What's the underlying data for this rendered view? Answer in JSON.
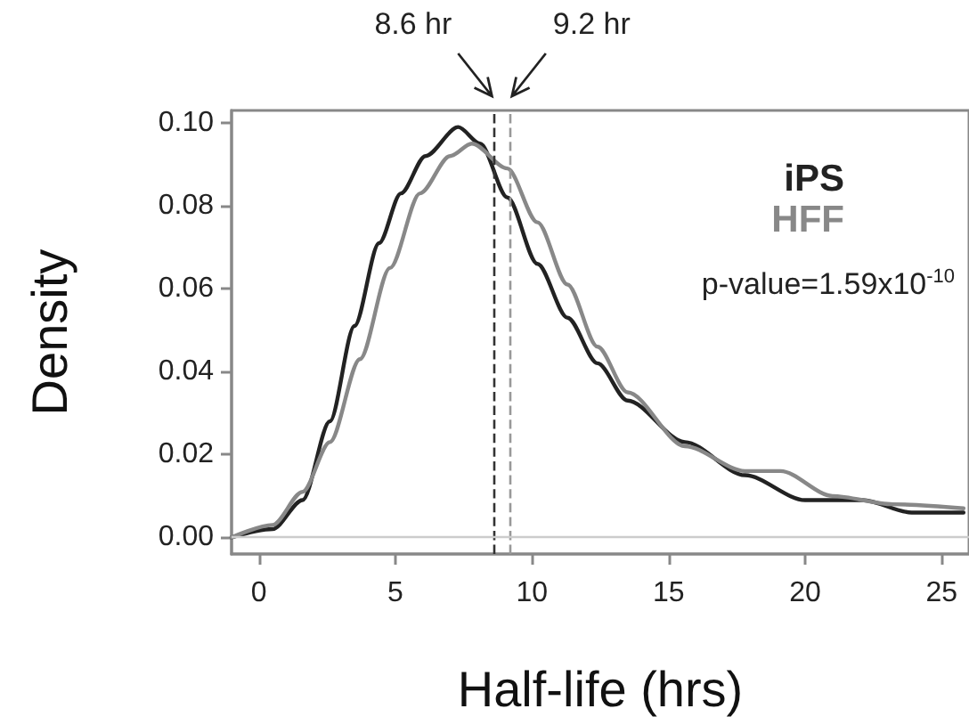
{
  "chart_data": {
    "type": "line",
    "xlabel": "Half-life (hrs)",
    "ylabel": "Density",
    "xlim": [
      -1,
      26
    ],
    "xticks": [
      0,
      5,
      10,
      15,
      20,
      25
    ],
    "ylim": [
      -0.004,
      0.103
    ],
    "yticks": [
      {
        "value": 0,
        "label": "0.00"
      },
      {
        "value": 0.02,
        "label": "0.02"
      },
      {
        "value": 0.04,
        "label": "0.04"
      },
      {
        "value": 0.06,
        "label": "0.06"
      },
      {
        "value": 0.08,
        "label": "0.08"
      },
      {
        "value": 0.1,
        "label": "0.10"
      }
    ],
    "grid": false,
    "legend": "top right",
    "marker": "none",
    "line_style": "solid",
    "series": [
      {
        "name": "iPS",
        "color": "#222222",
        "x": [
          -1.0,
          0.5,
          1.6,
          2.6,
          3.5,
          4.4,
          5.2,
          6.1,
          7.3,
          8.1,
          9.1,
          10.2,
          11.3,
          12.4,
          13.5,
          15.6,
          17.8,
          20.0,
          22.1,
          23.9,
          25.8
        ],
        "values": [
          0.0,
          0.002,
          0.009,
          0.028,
          0.051,
          0.071,
          0.083,
          0.092,
          0.099,
          0.095,
          0.082,
          0.066,
          0.053,
          0.042,
          0.033,
          0.023,
          0.015,
          0.009,
          0.009,
          0.006,
          0.006
        ]
      },
      {
        "name": "HFF",
        "color": "#888888",
        "x": [
          -1.0,
          0.5,
          1.6,
          2.6,
          3.7,
          4.8,
          5.9,
          7.0,
          7.8,
          9.1,
          10.2,
          11.3,
          12.4,
          13.5,
          15.6,
          17.8,
          19.1,
          21.0,
          23.2,
          25.8
        ],
        "values": [
          0.0,
          0.003,
          0.011,
          0.023,
          0.043,
          0.065,
          0.083,
          0.092,
          0.095,
          0.089,
          0.076,
          0.061,
          0.046,
          0.035,
          0.022,
          0.016,
          0.016,
          0.01,
          0.008,
          0.007
        ]
      }
    ],
    "ref_lines": [
      {
        "axis": "x",
        "value": 8.6,
        "label": "8.6 hr",
        "color": "#333333",
        "line_style": "dashed"
      },
      {
        "axis": "x",
        "value": 9.2,
        "label": "9.2 hr",
        "color": "#999999",
        "line_style": "dashed"
      },
      {
        "axis": "y",
        "value": 0,
        "label": null,
        "color": "#cccccc",
        "line_style": "solid"
      }
    ],
    "annotations": [
      "p-value=1.59x10$^{-10}$"
    ]
  }
}
